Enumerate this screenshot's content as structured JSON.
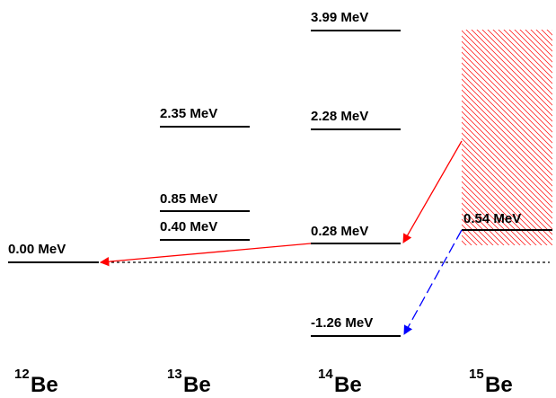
{
  "colors": {
    "level": "#000000",
    "decay_red": "#ff0000",
    "decay_blue": "#0000ff",
    "hatch": "#ff0000"
  },
  "columns": [
    {
      "id": "be12",
      "mass": "12",
      "element": "Be",
      "levels": [
        {
          "label": "0.00 MeV"
        }
      ]
    },
    {
      "id": "be13",
      "mass": "13",
      "element": "Be",
      "levels": [
        {
          "label": "2.35 MeV"
        },
        {
          "label": "0.85 MeV"
        },
        {
          "label": "0.40 MeV"
        }
      ]
    },
    {
      "id": "be14",
      "mass": "14",
      "element": "Be",
      "levels": [
        {
          "label": "3.99 MeV"
        },
        {
          "label": "2.28 MeV"
        },
        {
          "label": "0.28 MeV"
        },
        {
          "label": "-1.26 MeV"
        }
      ]
    },
    {
      "id": "be15",
      "mass": "15",
      "element": "Be",
      "levels": [
        {
          "label": "0.54 MeV"
        }
      ]
    }
  ]
}
